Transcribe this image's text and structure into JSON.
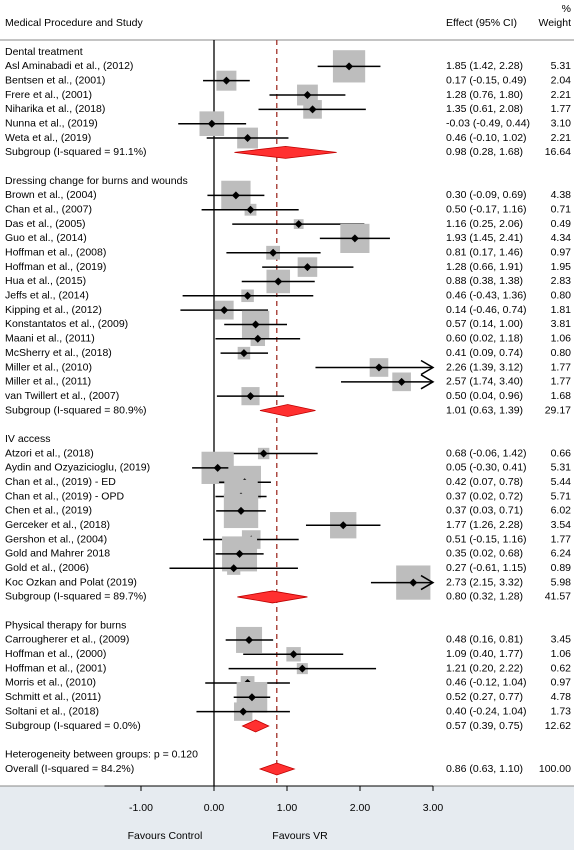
{
  "chart_data": {
    "type": "forest",
    "columns": {
      "study": "Medical Procedure and Study",
      "effect": "Effect (95% CI)",
      "weight_top": "%",
      "weight": "Weight"
    },
    "box_color": "#bdbdbd",
    "diamond_color": "#ff3030",
    "ref_color": "#a03028",
    "xlim": [
      -1.5,
      3.0
    ],
    "xticks": [
      {
        "value": -1,
        "label": "-1.00"
      },
      {
        "value": 0,
        "label": "0.00"
      },
      {
        "value": 1,
        "label": "1.00"
      },
      {
        "value": 2,
        "label": "2.00"
      },
      {
        "value": 3,
        "label": "3.00"
      }
    ],
    "groups": [
      {
        "name": "Dental treatment",
        "studies": [
          {
            "name": "Asl Aminabadi et al., (2012)",
            "effect": 1.85,
            "lower": 1.42,
            "upper": 2.28,
            "ci_label": "1.85 (1.42, 2.28)",
            "weight": 5.31,
            "weight_label": "5.31"
          },
          {
            "name": "Bentsen et al., (2001)",
            "effect": 0.17,
            "lower": -0.15,
            "upper": 0.49,
            "ci_label": "0.17 (-0.15, 0.49)",
            "weight": 2.04,
            "weight_label": "2.04"
          },
          {
            "name": "Frere et al., (2001)",
            "effect": 1.28,
            "lower": 0.76,
            "upper": 1.8,
            "ci_label": "1.28 (0.76, 1.80)",
            "weight": 2.21,
            "weight_label": "2.21"
          },
          {
            "name": "Niharika et al., (2018)",
            "effect": 1.35,
            "lower": 0.61,
            "upper": 2.08,
            "ci_label": "1.35 (0.61, 2.08)",
            "weight": 1.77,
            "weight_label": "1.77"
          },
          {
            "name": "Nunna et al., (2019)",
            "effect": -0.03,
            "lower": -0.49,
            "upper": 0.44,
            "ci_label": "-0.03 (-0.49, 0.44)",
            "weight": 3.1,
            "weight_label": "3.10"
          },
          {
            "name": "Weta et al., (2019)",
            "effect": 0.46,
            "lower": -0.1,
            "upper": 1.02,
            "ci_label": "0.46 (-0.10, 1.02)",
            "weight": 2.21,
            "weight_label": "2.21"
          }
        ],
        "subgroup": {
          "name": "Subgroup (I-squared = 91.1%)",
          "effect": 0.98,
          "lower": 0.28,
          "upper": 1.68,
          "ci_label": "0.98 (0.28, 1.68)",
          "weight": 16.64,
          "weight_label": "16.64"
        }
      },
      {
        "name": "Dressing change for burns and wounds",
        "studies": [
          {
            "name": "Brown et al., (2004)",
            "effect": 0.3,
            "lower": -0.09,
            "upper": 0.69,
            "ci_label": "0.30 (-0.09, 0.69)",
            "weight": 4.38,
            "weight_label": "4.38"
          },
          {
            "name": "Chan et al., (2007)",
            "effect": 0.5,
            "lower": -0.17,
            "upper": 1.16,
            "ci_label": "0.50 (-0.17, 1.16)",
            "weight": 0.71,
            "weight_label": "0.71"
          },
          {
            "name": "Das et al., (2005)",
            "effect": 1.16,
            "lower": 0.25,
            "upper": 2.06,
            "ci_label": "1.16 (0.25, 2.06)",
            "weight": 0.49,
            "weight_label": "0.49"
          },
          {
            "name": "Guo et al., (2014)",
            "effect": 1.93,
            "lower": 1.45,
            "upper": 2.41,
            "ci_label": "1.93 (1.45, 2.41)",
            "weight": 4.34,
            "weight_label": "4.34"
          },
          {
            "name": "Hoffman et al., (2008)",
            "effect": 0.81,
            "lower": 0.17,
            "upper": 1.46,
            "ci_label": "0.81 (0.17, 1.46)",
            "weight": 0.97,
            "weight_label": "0.97"
          },
          {
            "name": "Hoffman et al., (2019)",
            "effect": 1.28,
            "lower": 0.66,
            "upper": 1.91,
            "ci_label": "1.28 (0.66, 1.91)",
            "weight": 1.95,
            "weight_label": "1.95"
          },
          {
            "name": "Hua et al., (2015)",
            "effect": 0.88,
            "lower": 0.38,
            "upper": 1.38,
            "ci_label": "0.88 (0.38, 1.38)",
            "weight": 2.83,
            "weight_label": "2.83"
          },
          {
            "name": "Jeffs et al., (2014)",
            "effect": 0.46,
            "lower": -0.43,
            "upper": 1.36,
            "ci_label": "0.46 (-0.43, 1.36)",
            "weight": 0.8,
            "weight_label": "0.80"
          },
          {
            "name": "Kipping et al., (2012)",
            "effect": 0.14,
            "lower": -0.46,
            "upper": 0.74,
            "ci_label": "0.14 (-0.46, 0.74)",
            "weight": 1.81,
            "weight_label": "1.81"
          },
          {
            "name": "Konstantatos et al., (2009)",
            "effect": 0.57,
            "lower": 0.14,
            "upper": 1.0,
            "ci_label": "0.57 (0.14, 1.00)",
            "weight": 3.81,
            "weight_label": "3.81"
          },
          {
            "name": "Maani et al., (2011)",
            "effect": 0.6,
            "lower": 0.02,
            "upper": 1.18,
            "ci_label": "0.60 (0.02, 1.18)",
            "weight": 1.06,
            "weight_label": "1.06"
          },
          {
            "name": "McSherry et al., (2018)",
            "effect": 0.41,
            "lower": 0.09,
            "upper": 0.74,
            "ci_label": "0.41 (0.09, 0.74)",
            "weight": 0.8,
            "weight_label": "0.80"
          },
          {
            "name": "Miller et al., (2010)",
            "effect": 2.26,
            "lower": 1.39,
            "upper": 3.12,
            "ci_label": "2.26 (1.39, 3.12)",
            "weight": 1.77,
            "weight_label": "1.77"
          },
          {
            "name": "Miller et al., (2011)",
            "effect": 2.57,
            "lower": 1.74,
            "upper": 3.4,
            "ci_label": "2.57 (1.74, 3.40)",
            "weight": 1.77,
            "weight_label": "1.77"
          },
          {
            "name": "van Twillert et al., (2007)",
            "effect": 0.5,
            "lower": 0.04,
            "upper": 0.96,
            "ci_label": "0.50 (0.04, 0.96)",
            "weight": 1.68,
            "weight_label": "1.68"
          }
        ],
        "subgroup": {
          "name": "Subgroup (I-squared = 80.9%)",
          "effect": 1.01,
          "lower": 0.63,
          "upper": 1.39,
          "ci_label": "1.01 (0.63, 1.39)",
          "weight": 29.17,
          "weight_label": "29.17"
        }
      },
      {
        "name": "IV access",
        "studies": [
          {
            "name": "Atzori et al., (2018)",
            "effect": 0.68,
            "lower": -0.06,
            "upper": 1.42,
            "ci_label": "0.68 (-0.06, 1.42)",
            "weight": 0.66,
            "weight_label": "0.66"
          },
          {
            "name": "Aydin and Ozyazicioglu, (2019)",
            "effect": 0.05,
            "lower": -0.3,
            "upper": 0.41,
            "ci_label": "0.05 (-0.30, 0.41)",
            "weight": 5.31,
            "weight_label": "5.31"
          },
          {
            "name": "Chan et al., (2019) - ED",
            "effect": 0.42,
            "lower": 0.07,
            "upper": 0.78,
            "ci_label": "0.42 (0.07, 0.78)",
            "weight": 5.44,
            "weight_label": "5.44"
          },
          {
            "name": "Chan et al., (2019) - OPD",
            "effect": 0.37,
            "lower": 0.02,
            "upper": 0.72,
            "ci_label": "0.37 (0.02, 0.72)",
            "weight": 5.71,
            "weight_label": "5.71"
          },
          {
            "name": "Chen et al., (2019)",
            "effect": 0.37,
            "lower": 0.03,
            "upper": 0.71,
            "ci_label": "0.37 (0.03, 0.71)",
            "weight": 6.02,
            "weight_label": "6.02"
          },
          {
            "name": "Gerceker et al., (2018)",
            "effect": 1.77,
            "lower": 1.26,
            "upper": 2.28,
            "ci_label": "1.77 (1.26, 2.28)",
            "weight": 3.54,
            "weight_label": "3.54"
          },
          {
            "name": "Gershon et al., (2004)",
            "effect": 0.51,
            "lower": -0.15,
            "upper": 1.16,
            "ci_label": "0.51 (-0.15, 1.16)",
            "weight": 1.77,
            "weight_label": "1.77"
          },
          {
            "name": "Gold and Mahrer 2018",
            "effect": 0.35,
            "lower": 0.02,
            "upper": 0.68,
            "ci_label": "0.35 (0.02, 0.68)",
            "weight": 6.24,
            "weight_label": "6.24"
          },
          {
            "name": "Gold et al., (2006)",
            "effect": 0.27,
            "lower": -0.61,
            "upper": 1.15,
            "ci_label": "0.27 (-0.61, 1.15)",
            "weight": 0.89,
            "weight_label": "0.89"
          },
          {
            "name": "Koc Ozkan and Polat (2019)",
            "effect": 2.73,
            "lower": 2.15,
            "upper": 3.32,
            "ci_label": "2.73 (2.15, 3.32)",
            "weight": 5.98,
            "weight_label": "5.98"
          }
        ],
        "subgroup": {
          "name": "Subgroup (I-squared = 89.7%)",
          "effect": 0.8,
          "lower": 0.32,
          "upper": 1.28,
          "ci_label": "0.80 (0.32, 1.28)",
          "weight": 41.57,
          "weight_label": "41.57"
        }
      },
      {
        "name": "Physical therapy for burns",
        "studies": [
          {
            "name": "Carrougherer et al., (2009)",
            "effect": 0.48,
            "lower": 0.16,
            "upper": 0.81,
            "ci_label": "0.48 (0.16, 0.81)",
            "weight": 3.45,
            "weight_label": "3.45"
          },
          {
            "name": "Hoffman  et al., (2000)",
            "effect": 1.09,
            "lower": 0.4,
            "upper": 1.77,
            "ci_label": "1.09 (0.40, 1.77)",
            "weight": 1.06,
            "weight_label": "1.06"
          },
          {
            "name": "Hoffman et al., (2001)",
            "effect": 1.21,
            "lower": 0.2,
            "upper": 2.22,
            "ci_label": "1.21 (0.20, 2.22)",
            "weight": 0.62,
            "weight_label": "0.62"
          },
          {
            "name": "Morris et al., (2010)",
            "effect": 0.46,
            "lower": -0.12,
            "upper": 1.04,
            "ci_label": "0.46 (-0.12, 1.04)",
            "weight": 0.97,
            "weight_label": "0.97"
          },
          {
            "name": "Schmitt et al., (2011)",
            "effect": 0.52,
            "lower": 0.27,
            "upper": 0.77,
            "ci_label": "0.52 (0.27, 0.77)",
            "weight": 4.78,
            "weight_label": "4.78"
          },
          {
            "name": "Soltani et al., (2018)",
            "effect": 0.4,
            "lower": -0.24,
            "upper": 1.04,
            "ci_label": "0.40 (-0.24, 1.04)",
            "weight": 1.73,
            "weight_label": "1.73"
          }
        ],
        "subgroup": {
          "name": "Subgroup (I-squared = 0.0%)",
          "effect": 0.57,
          "lower": 0.39,
          "upper": 0.75,
          "ci_label": "0.57 (0.39, 0.75)",
          "weight": 12.62,
          "weight_label": "12.62"
        }
      }
    ],
    "heterogeneity": "Heterogeneity between groups: p = 0.120",
    "overall": {
      "name": "Overall (I-squared = 84.2%)",
      "effect": 0.86,
      "lower": 0.63,
      "upper": 1.1,
      "ci_label": "0.86 (0.63, 1.10)",
      "weight": 100,
      "weight_label": "100.00"
    },
    "favours_left": "Favours Control",
    "favours_right": "Favours VR"
  }
}
